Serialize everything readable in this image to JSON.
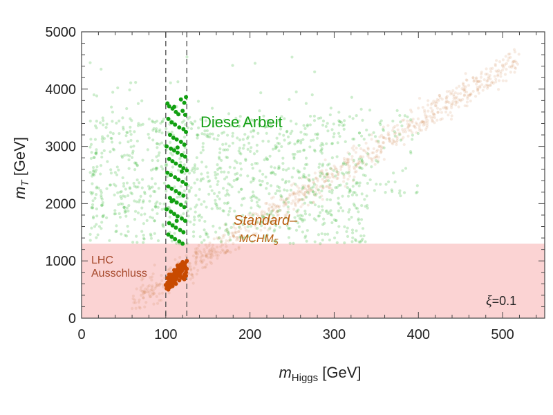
{
  "chart_data": {
    "type": "scatter",
    "title": "",
    "xlabel_main": "m",
    "xlabel_sub": "Higgs",
    "xlabel_unit": "[GeV]",
    "ylabel_main": "m",
    "ylabel_sub": "T",
    "ylabel_unit": "[GeV]",
    "xlim": [
      0,
      550
    ],
    "ylim": [
      0,
      5000
    ],
    "x_ticks": [
      0,
      100,
      200,
      300,
      400,
      500
    ],
    "y_ticks": [
      0,
      1000,
      2000,
      3000,
      4000,
      5000
    ],
    "exclusion_band": {
      "y_min": 0,
      "y_max": 1300,
      "color": "#fbd3d3"
    },
    "dashed_lines_x": [
      100,
      125
    ],
    "annotations": {
      "green_label": "Diese Arbeit",
      "orange_label_main": "Standard–",
      "orange_label_sub": "MCHM",
      "orange_label_subscript": "5",
      "lhc_line1": "LHC",
      "lhc_line2": "Ausschluss",
      "xi_symbol": "ξ",
      "xi_value": "=0.1"
    },
    "series": [
      {
        "id": "green-light",
        "color": "#4cc04c",
        "opacity": 0.28
      },
      {
        "id": "green-dark",
        "color": "#11a011",
        "opacity": 1.0
      },
      {
        "id": "orange-light",
        "color": "#cc7a3c",
        "opacity": 0.15
      },
      {
        "id": "orange-dark",
        "color": "#c84a00",
        "opacity": 1.0
      }
    ],
    "series_points": {
      "green-dark": [
        [
          102,
          3750
        ],
        [
          104,
          3700
        ],
        [
          108,
          3660
        ],
        [
          112,
          3600
        ],
        [
          115,
          3560
        ],
        [
          120,
          3620
        ],
        [
          123,
          3550
        ],
        [
          103,
          3480
        ],
        [
          107,
          3420
        ],
        [
          111,
          3380
        ],
        [
          116,
          3330
        ],
        [
          121,
          3300
        ],
        [
          124,
          3250
        ],
        [
          105,
          3200
        ],
        [
          109,
          3150
        ],
        [
          113,
          3120
        ],
        [
          118,
          3080
        ],
        [
          122,
          3030
        ],
        [
          101,
          3000
        ],
        [
          106,
          2960
        ],
        [
          110,
          2930
        ],
        [
          114,
          2890
        ],
        [
          119,
          2850
        ],
        [
          123,
          2820
        ],
        [
          104,
          2780
        ],
        [
          108,
          2740
        ],
        [
          112,
          2700
        ],
        [
          117,
          2660
        ],
        [
          121,
          2620
        ],
        [
          125,
          2580
        ],
        [
          102,
          2540
        ],
        [
          106,
          2500
        ],
        [
          111,
          2460
        ],
        [
          115,
          2420
        ],
        [
          120,
          2380
        ],
        [
          124,
          2340
        ],
        [
          103,
          2300
        ],
        [
          107,
          2260
        ],
        [
          112,
          2220
        ],
        [
          116,
          2180
        ],
        [
          121,
          2140
        ],
        [
          105,
          2100
        ],
        [
          109,
          2060
        ],
        [
          113,
          2020
        ],
        [
          118,
          1980
        ],
        [
          122,
          1940
        ],
        [
          101,
          1900
        ],
        [
          106,
          1860
        ],
        [
          110,
          1820
        ],
        [
          114,
          1780
        ],
        [
          119,
          1740
        ],
        [
          123,
          1700
        ],
        [
          104,
          1660
        ],
        [
          108,
          1620
        ],
        [
          112,
          1580
        ],
        [
          117,
          1540
        ],
        [
          121,
          1500
        ],
        [
          103,
          1460
        ],
        [
          107,
          1420
        ],
        [
          111,
          1380
        ],
        [
          116,
          1340
        ],
        [
          120,
          1300
        ],
        [
          124,
          3860
        ],
        [
          122,
          3760
        ],
        [
          118,
          3820
        ],
        [
          110,
          3690
        ],
        [
          114,
          2980
        ],
        [
          119,
          2560
        ],
        [
          107,
          2040
        ],
        [
          113,
          1700
        ]
      ],
      "orange-dark": [
        [
          101,
          520
        ],
        [
          103,
          560
        ],
        [
          105,
          600
        ],
        [
          107,
          640
        ],
        [
          109,
          680
        ],
        [
          111,
          720
        ],
        [
          113,
          760
        ],
        [
          115,
          800
        ],
        [
          117,
          840
        ],
        [
          119,
          880
        ],
        [
          121,
          920
        ],
        [
          123,
          960
        ],
        [
          125,
          1000
        ],
        [
          102,
          620
        ],
        [
          104,
          660
        ],
        [
          106,
          700
        ],
        [
          108,
          740
        ],
        [
          110,
          780
        ],
        [
          112,
          820
        ],
        [
          114,
          860
        ],
        [
          116,
          900
        ],
        [
          118,
          940
        ],
        [
          120,
          980
        ],
        [
          122,
          760
        ],
        [
          124,
          800
        ],
        [
          103,
          500
        ],
        [
          105,
          540
        ],
        [
          107,
          580
        ],
        [
          109,
          620
        ],
        [
          111,
          660
        ],
        [
          113,
          700
        ],
        [
          115,
          740
        ],
        [
          117,
          780
        ],
        [
          119,
          820
        ],
        [
          121,
          860
        ],
        [
          123,
          900
        ],
        [
          102,
          700
        ],
        [
          106,
          760
        ],
        [
          110,
          840
        ],
        [
          114,
          920
        ],
        [
          118,
          720
        ],
        [
          122,
          680
        ],
        [
          125,
          860
        ],
        [
          100,
          580
        ],
        [
          112,
          600
        ],
        [
          116,
          660
        ],
        [
          120,
          700
        ],
        [
          124,
          740
        ],
        [
          108,
          560
        ],
        [
          104,
          760
        ]
      ]
    }
  }
}
